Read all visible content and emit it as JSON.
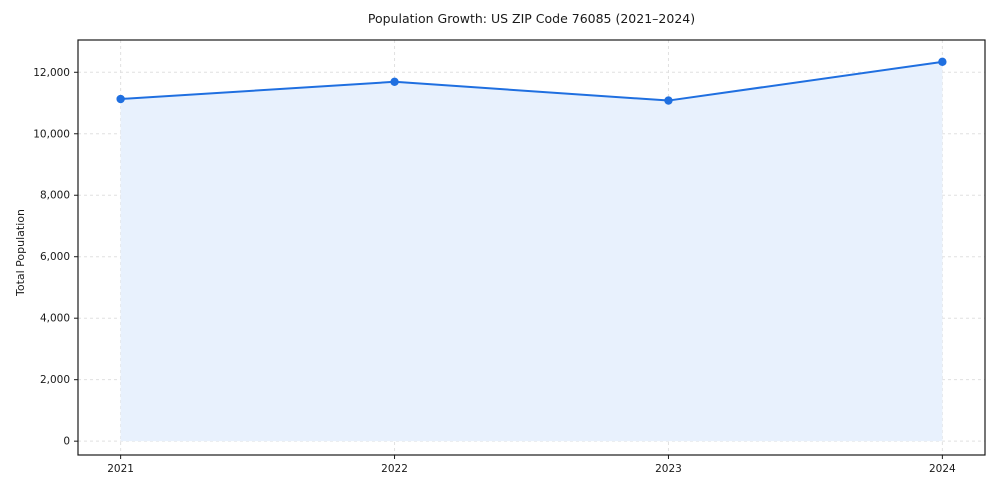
{
  "chart_data": {
    "type": "line",
    "title": "Population Growth: US ZIP Code 76085 (2021–2024)",
    "xlabel": "",
    "ylabel": "Total Population",
    "categories": [
      "2021",
      "2022",
      "2023",
      "2024"
    ],
    "series": [
      {
        "name": "Total Population",
        "values": [
          11130,
          11690,
          11080,
          12340
        ]
      }
    ],
    "y_ticks": {
      "values": [
        0,
        2000,
        4000,
        6000,
        8000,
        10000,
        12000
      ],
      "labels": [
        "0",
        "2,000",
        "4,000",
        "6,000",
        "8,000",
        "10,000",
        "12,000"
      ]
    },
    "ylim": [
      -450,
      13050
    ],
    "grid": "dashed, both axes",
    "legend": "none",
    "area_fill": true,
    "markers": "circle",
    "style": {
      "line_color": "#1f6fe0",
      "marker_color": "#1f6fe0",
      "fill_color": "#e8f1fd",
      "grid_color": "#e0e0e0",
      "axis_color": "#1a1a1a",
      "text_color": "#1a1a1a",
      "background": "#ffffff"
    }
  }
}
